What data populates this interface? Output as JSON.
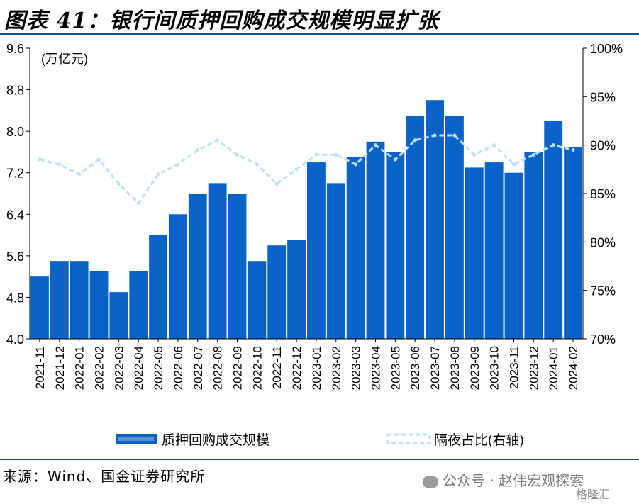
{
  "title": "图表 41：银行间质押回购成交规模明显扩张",
  "source": "来源：Wind、国金证券研究所",
  "watermark": "公众号 · 赵伟宏观探索",
  "watermark_corner": "格隆汇",
  "colors": {
    "bar": "#0a63c9",
    "line": "#bfe1f5",
    "rule": "#1a4e8a"
  },
  "chart_data": {
    "type": "bar",
    "y_unit_label": "(万亿元)",
    "ylim": [
      4.0,
      9.6
    ],
    "y_ticks": [
      "9.6",
      "8.8",
      "8.0",
      "7.2",
      "6.4",
      "5.6",
      "4.8",
      "4.0"
    ],
    "y2lim": [
      70,
      100
    ],
    "y2_ticks": [
      "100%",
      "95%",
      "90%",
      "85%",
      "80%",
      "75%",
      "70%"
    ],
    "x_ticks": [
      "2021-11",
      "2021-12",
      "2022-01",
      "2022-02",
      "2022-03",
      "2022-04",
      "2022-05",
      "2022-06",
      "2022-07",
      "2022-08",
      "2022-09",
      "2022-10",
      "2022-11",
      "2022-12",
      "2023-01",
      "2023-02",
      "2023-03",
      "2023-04",
      "2023-05",
      "2023-06",
      "2023-07",
      "2023-08",
      "2023-09",
      "2023-10",
      "2023-11",
      "2023-12",
      "2024-01",
      "2024-02"
    ],
    "legend": [
      "质押回购成交规模",
      "隔夜占比(右轴)"
    ],
    "series": [
      {
        "name": "质押回购成交规模",
        "axis": "left",
        "type": "bar",
        "months": [
          "2021-11",
          "2021-12",
          "2022-01",
          "2022-02",
          "2022-03",
          "2022-04",
          "2022-05",
          "2022-06",
          "2022-07",
          "2022-08",
          "2022-09",
          "2022-10",
          "2022-11",
          "2022-12",
          "2023-01",
          "2023-02",
          "2023-03",
          "2023-04",
          "2023-05",
          "2023-06",
          "2023-07",
          "2023-08",
          "2023-09",
          "2023-10",
          "2023-11",
          "2023-12",
          "2024-01",
          "2024-02"
        ],
        "values": [
          5.2,
          5.5,
          5.5,
          5.3,
          4.9,
          5.3,
          6.0,
          6.4,
          6.8,
          7.0,
          6.8,
          5.5,
          5.8,
          5.9,
          7.4,
          7.0,
          7.5,
          7.8,
          7.6,
          8.3,
          8.6,
          8.3,
          7.3,
          7.4,
          7.2,
          7.6,
          8.2,
          7.7
        ]
      },
      {
        "name": "隔夜占比(右轴)",
        "axis": "right",
        "type": "line",
        "months": [
          "2021-11",
          "2021-12",
          "2022-01",
          "2022-02",
          "2022-03",
          "2022-04",
          "2022-05",
          "2022-06",
          "2022-07",
          "2022-08",
          "2022-09",
          "2022-10",
          "2022-11",
          "2022-12",
          "2023-01",
          "2023-02",
          "2023-03",
          "2023-04",
          "2023-05",
          "2023-06",
          "2023-07",
          "2023-08",
          "2023-09",
          "2023-10",
          "2023-11",
          "2023-12",
          "2024-01",
          "2024-02"
        ],
        "values": [
          88.5,
          88.0,
          87.0,
          88.5,
          86.0,
          84.0,
          87.0,
          88.0,
          89.5,
          90.5,
          89.0,
          88.0,
          86.0,
          87.5,
          89.0,
          89.0,
          88.0,
          90.0,
          88.5,
          90.5,
          91.0,
          91.0,
          89.0,
          90.0,
          88.0,
          89.0,
          90.0,
          89.5
        ]
      }
    ]
  }
}
